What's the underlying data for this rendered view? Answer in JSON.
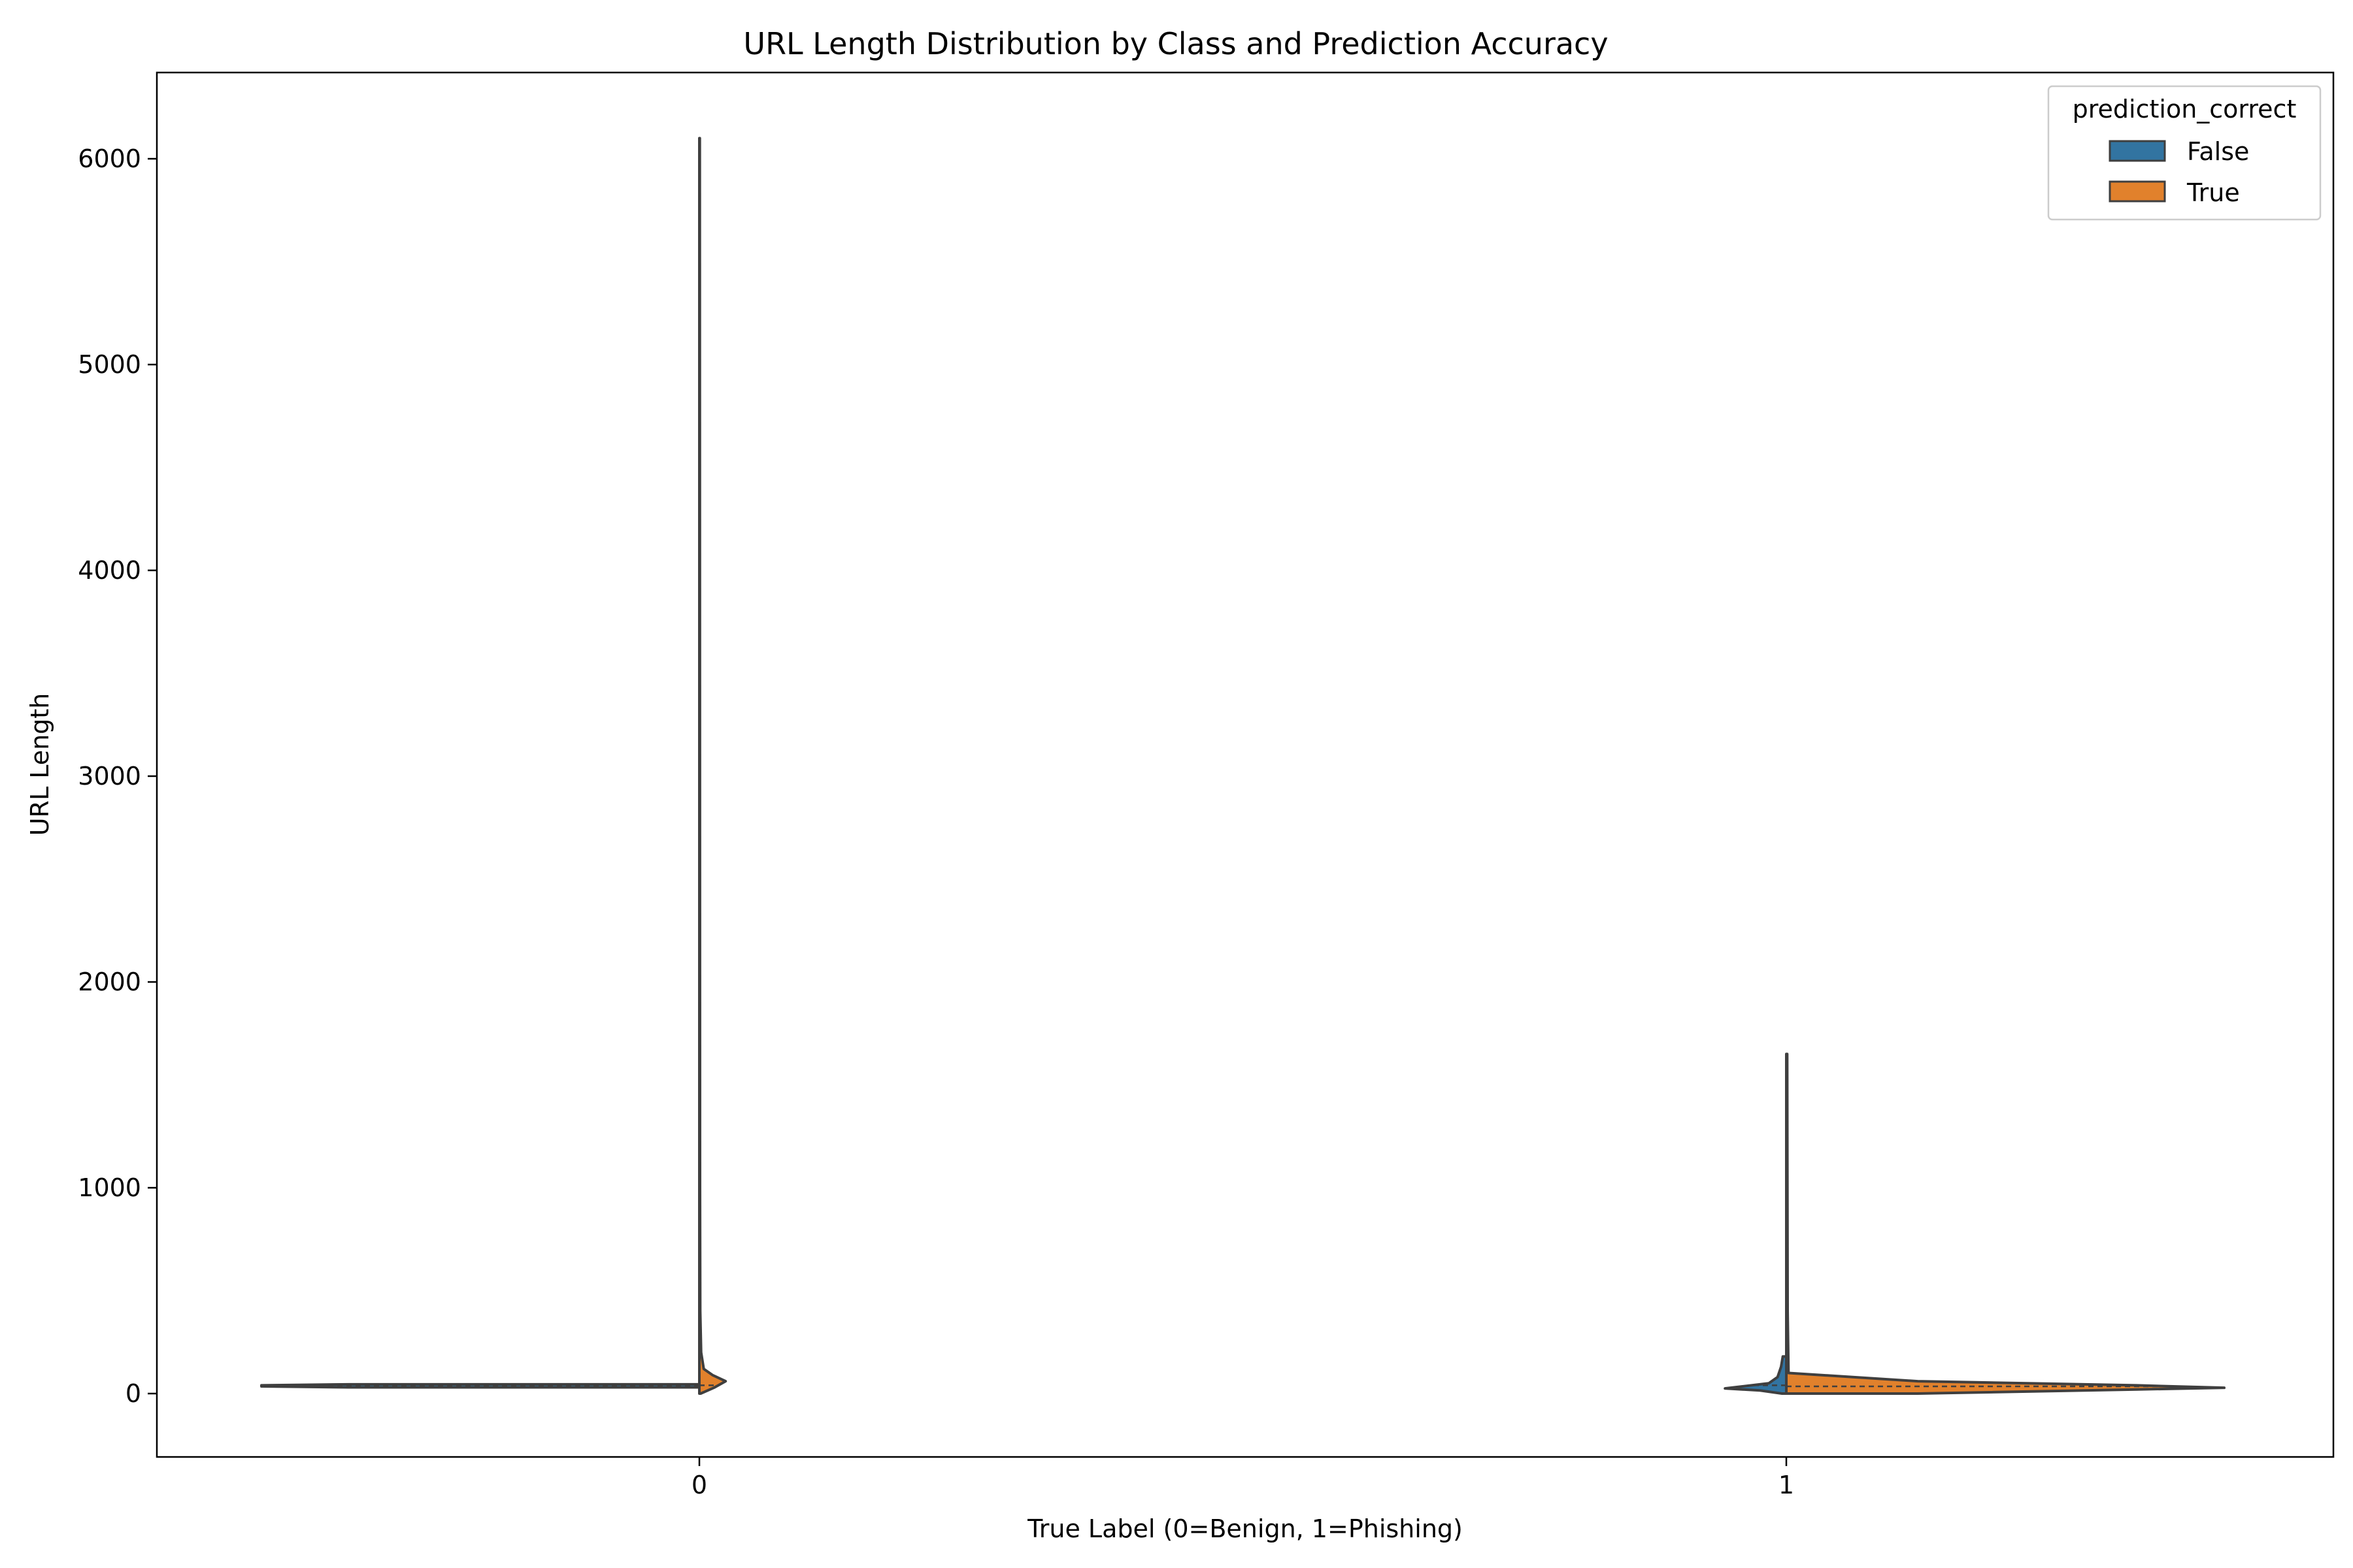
{
  "chart_data": {
    "type": "violin",
    "title": "URL Length Distribution by Class and Prediction Accuracy",
    "xlabel": "True Label (0=Benign, 1=Phishing)",
    "ylabel": "URL Length",
    "categories": [
      "0",
      "1"
    ],
    "ylim": [
      -310,
      6400
    ],
    "yticks": [
      0,
      1000,
      2000,
      3000,
      4000,
      5000,
      6000
    ],
    "hue": "prediction_correct",
    "legend": {
      "title": "prediction_correct",
      "position": "top-right",
      "entries": [
        {
          "label": "False",
          "color": "#3274a1"
        },
        {
          "label": "True",
          "color": "#e1812c"
        }
      ]
    },
    "series": [
      {
        "name": "False",
        "color": "#3274a1",
        "violins": [
          {
            "category": "0",
            "min": 30,
            "max": 45,
            "median": 37,
            "profile": [
              [
                30,
                0.8
              ],
              [
                35,
                1.0
              ],
              [
                40,
                1.0
              ],
              [
                45,
                0.8
              ]
            ]
          },
          {
            "category": "1",
            "min": 0,
            "max": 180,
            "median": 40,
            "profile": [
              [
                0,
                0.01
              ],
              [
                15,
                0.06
              ],
              [
                25,
                0.14
              ],
              [
                35,
                0.1
              ],
              [
                50,
                0.04
              ],
              [
                80,
                0.02
              ],
              [
                130,
                0.012
              ],
              [
                180,
                0.008
              ]
            ]
          }
        ]
      },
      {
        "name": "True",
        "color": "#e1812c",
        "violins": [
          {
            "category": "0",
            "min": 0,
            "max": 6100,
            "median": 40,
            "profile": [
              [
                0,
                0.003
              ],
              [
                30,
                0.035
              ],
              [
                60,
                0.06
              ],
              [
                90,
                0.03
              ],
              [
                120,
                0.01
              ],
              [
                200,
                0.004
              ],
              [
                400,
                0.002
              ],
              [
                1000,
                0.0015
              ],
              [
                6100,
                0.001
              ]
            ]
          },
          {
            "category": "1",
            "min": 0,
            "max": 1650,
            "median": 35,
            "profile": [
              [
                0,
                0.3
              ],
              [
                20,
                0.8
              ],
              [
                28,
                1.0
              ],
              [
                40,
                0.8
              ],
              [
                60,
                0.3
              ],
              [
                100,
                0.005
              ],
              [
                400,
                0.003
              ],
              [
                1650,
                0.002
              ]
            ]
          }
        ]
      }
    ]
  }
}
